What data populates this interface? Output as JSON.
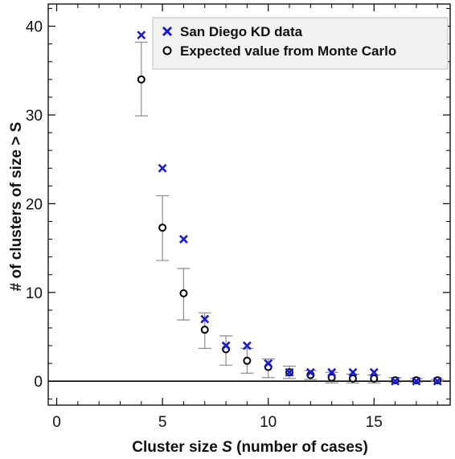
{
  "chart_data": {
    "type": "scatter",
    "xlabel": "Cluster size",
    "xlabel_symbol": "S",
    "xlabel_suffix": "(number of cases)",
    "ylabel": "# of clusters of size > S",
    "xlim": [
      -0.4,
      18.6
    ],
    "ylim": [
      -2.7,
      42.5
    ],
    "x_ticks": [
      0,
      5,
      10,
      15
    ],
    "y_ticks": [
      0,
      10,
      20,
      30,
      40
    ],
    "x_tick_labels": [
      "0",
      "5",
      "10",
      "15"
    ],
    "y_tick_labels": [
      "0",
      "10",
      "20",
      "30",
      "40"
    ],
    "legend_position": "top-right",
    "reference_line_y": 0,
    "series": [
      {
        "name": "San Diego KD data",
        "marker": "x",
        "color": "#1a1ad6",
        "points": [
          {
            "x": 4,
            "y": 39
          },
          {
            "x": 5,
            "y": 24
          },
          {
            "x": 6,
            "y": 16
          },
          {
            "x": 7,
            "y": 7
          },
          {
            "x": 8,
            "y": 4
          },
          {
            "x": 9,
            "y": 4
          },
          {
            "x": 10,
            "y": 2
          },
          {
            "x": 11,
            "y": 1
          },
          {
            "x": 12,
            "y": 1
          },
          {
            "x": 13,
            "y": 1
          },
          {
            "x": 14,
            "y": 1
          },
          {
            "x": 15,
            "y": 1
          },
          {
            "x": 16,
            "y": 0
          },
          {
            "x": 17,
            "y": 0
          },
          {
            "x": 18,
            "y": 0
          }
        ]
      },
      {
        "name": "Expected value from Monte Carlo",
        "marker": "circle",
        "color": "#000000",
        "error_color": "#8c8c8c",
        "points": [
          {
            "x": 4,
            "y": 34.0,
            "err_low": 29.9,
            "err_high": 38.2
          },
          {
            "x": 5,
            "y": 17.3,
            "err_low": 13.6,
            "err_high": 20.9
          },
          {
            "x": 6,
            "y": 9.9,
            "err_low": 6.9,
            "err_high": 12.7
          },
          {
            "x": 7,
            "y": 5.8,
            "err_low": 3.7,
            "err_high": 7.7
          },
          {
            "x": 8,
            "y": 3.6,
            "err_low": 1.8,
            "err_high": 5.1
          },
          {
            "x": 9,
            "y": 2.3,
            "err_low": 0.9,
            "err_high": 3.7
          },
          {
            "x": 10,
            "y": 1.6,
            "err_low": 0.4,
            "err_high": 2.5
          },
          {
            "x": 11,
            "y": 1.0,
            "err_low": 0.3,
            "err_high": 1.7
          },
          {
            "x": 12,
            "y": 0.7,
            "err_low": 0.2,
            "err_high": 1.2
          },
          {
            "x": 13,
            "y": 0.4,
            "err_low": -0.2,
            "err_high": 1.0
          },
          {
            "x": 14,
            "y": 0.3,
            "err_low": -0.2,
            "err_high": 0.8
          },
          {
            "x": 15,
            "y": 0.3,
            "err_low": -0.2,
            "err_high": 0.7
          },
          {
            "x": 16,
            "y": 0.1,
            "err_low": -0.1,
            "err_high": 0.4
          },
          {
            "x": 17,
            "y": 0.1,
            "err_low": -0.1,
            "err_high": 0.3
          },
          {
            "x": 18,
            "y": 0.1,
            "err_low": 0.0,
            "err_high": 0.2
          }
        ]
      }
    ]
  }
}
